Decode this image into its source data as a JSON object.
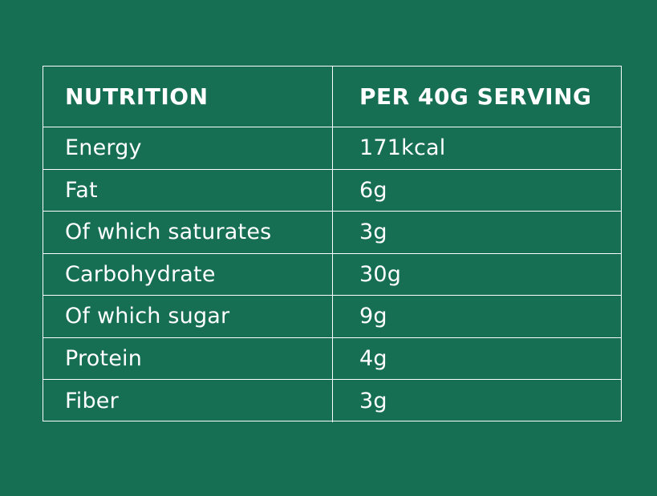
{
  "table": {
    "header": {
      "nutrient": "NUTRITION",
      "amount": "PER 40G SERVING"
    },
    "rows": [
      {
        "nutrient": "Energy",
        "amount": "171kcal"
      },
      {
        "nutrient": "Fat",
        "amount": "6g"
      },
      {
        "nutrient": "Of which saturates",
        "amount": "3g"
      },
      {
        "nutrient": "Carbohydrate",
        "amount": "30g"
      },
      {
        "nutrient": "Of which sugar",
        "amount": "9g"
      },
      {
        "nutrient": "Protein",
        "amount": "4g"
      },
      {
        "nutrient": "Fiber",
        "amount": "3g"
      }
    ]
  },
  "colors": {
    "background": "#166f52",
    "text": "#ffffff",
    "border": "#ffffff"
  }
}
